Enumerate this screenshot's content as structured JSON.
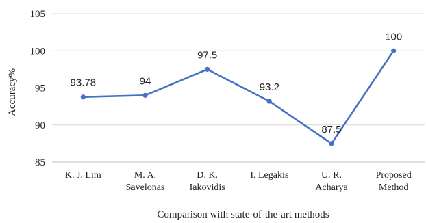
{
  "chart_data": {
    "type": "line",
    "categories": [
      [
        "K. J. Lim"
      ],
      [
        "M. A.",
        "Savelonas"
      ],
      [
        "D. K.",
        "Iakovidis"
      ],
      [
        "I. Legakis"
      ],
      [
        "U. R.",
        "Acharya"
      ],
      [
        "Proposed",
        "Method"
      ]
    ],
    "values": [
      93.78,
      94,
      97.5,
      93.2,
      87.5,
      100
    ],
    "data_labels": [
      "93.78",
      "94",
      "97.5",
      "93.2",
      "87.5",
      "100"
    ],
    "xlabel": "Comparison with state-of-the-art methods",
    "ylabel": "Accuracy%",
    "ylim": [
      85,
      105
    ],
    "yticks": [
      85,
      90,
      95,
      100,
      105
    ],
    "grid": "horizontal",
    "colors": {
      "line": "#4472c4",
      "grid": "#d9d9d9",
      "axis": "#bfbfbf"
    }
  }
}
